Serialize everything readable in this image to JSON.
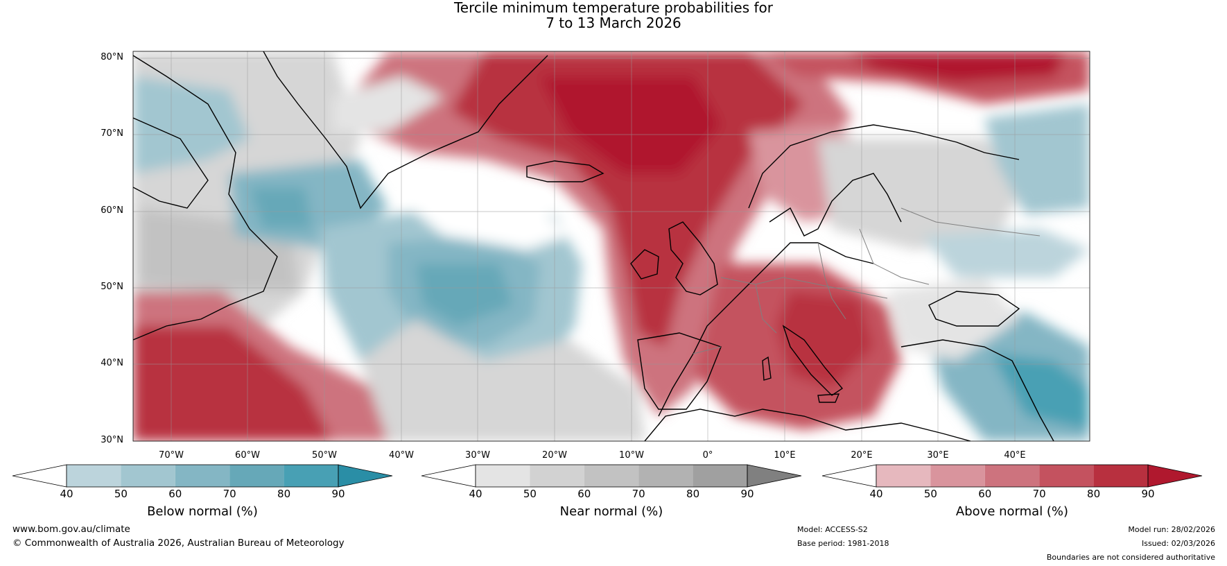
{
  "title": {
    "line1": "Tercile minimum temperature probabilities for",
    "line2": "7 to 13 March 2026"
  },
  "map": {
    "lat_labels": [
      "80°N",
      "70°N",
      "60°N",
      "50°N",
      "40°N",
      "30°N"
    ],
    "lon_labels": [
      "70°W",
      "60°W",
      "50°W",
      "40°W",
      "30°W",
      "20°W",
      "10°W",
      "0°",
      "10°E",
      "20°E",
      "30°E",
      "40°E"
    ],
    "colors": {
      "ocean_white": "#ffffff",
      "land_line": "#000000",
      "border_line": "#808080"
    }
  },
  "colorbars": [
    {
      "title": "Below normal (%)",
      "ticks": [
        "40",
        "50",
        "60",
        "70",
        "80",
        "90"
      ],
      "colors": [
        "#ffffff",
        "#bcd4dc",
        "#a2c6d0",
        "#84b6c4",
        "#66a8b8",
        "#48a0b4",
        "#2a8ea6"
      ]
    },
    {
      "title": "Near normal (%)",
      "ticks": [
        "40",
        "50",
        "60",
        "70",
        "80",
        "90"
      ],
      "colors": [
        "#ffffff",
        "#e4e4e4",
        "#d2d2d2",
        "#c2c2c2",
        "#b2b2b2",
        "#a0a0a0",
        "#808080"
      ]
    },
    {
      "title": "Above normal (%)",
      "ticks": [
        "40",
        "50",
        "60",
        "70",
        "80",
        "90"
      ],
      "colors": [
        "#ffffff",
        "#e6b8be",
        "#d9949d",
        "#cd737e",
        "#c4525f",
        "#b8303f",
        "#b0182e"
      ]
    }
  ],
  "footer": {
    "website": "www.bom.gov.au/climate",
    "copyright": "© Commonwealth of Australia 2026, Australian Bureau of Meteorology",
    "model": "Model: ACCESS-S2",
    "base_period": "Base period: 1981-2018",
    "model_run": "Model run: 28/02/2026",
    "issued": "Issued: 02/03/2026",
    "disclaimer": "Boundaries are not considered authoritative"
  }
}
